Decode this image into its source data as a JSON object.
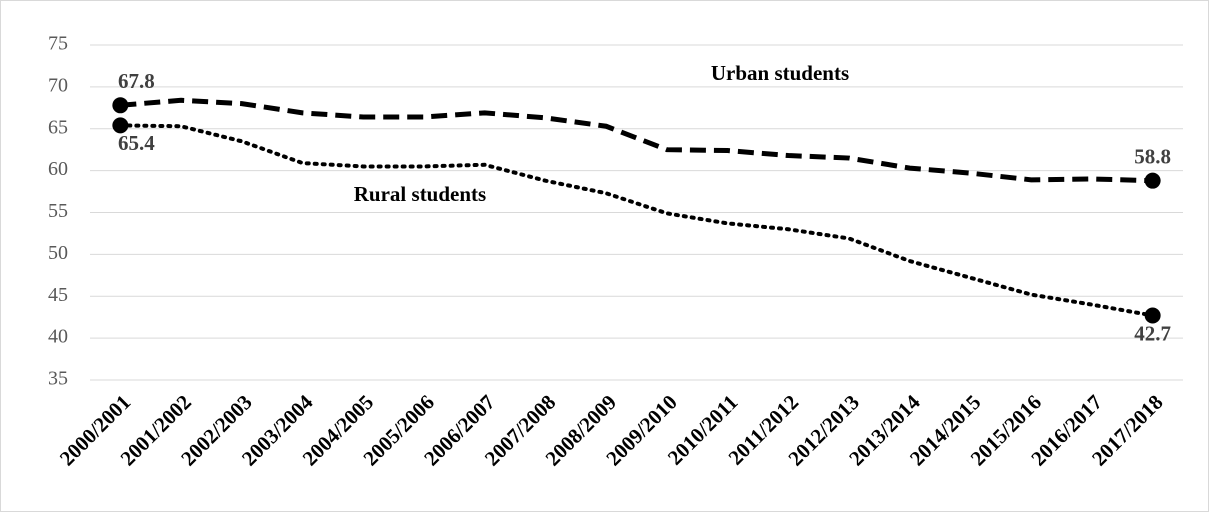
{
  "chart_data": {
    "type": "line",
    "categories": [
      "2000/2001",
      "2001/2002",
      "2002/2003",
      "2003/2004",
      "2004/2005",
      "2005/2006",
      "2006/2007",
      "2007/2008",
      "2008/2009",
      "2009/2010",
      "2010/2011",
      "2011/2012",
      "2012/2013",
      "2013/2014",
      "2014/2015",
      "2015/2016",
      "2016/2017",
      "2017/2018"
    ],
    "series": [
      {
        "name": "Urban students",
        "color": "#000000",
        "dash": "dashed",
        "values": [
          67.8,
          68.4,
          68.0,
          66.9,
          66.4,
          66.4,
          66.9,
          66.3,
          65.3,
          62.5,
          62.4,
          61.8,
          61.5,
          60.3,
          59.7,
          58.9,
          59.0,
          58.8
        ]
      },
      {
        "name": "Rural students",
        "color": "#000000",
        "dash": "dotted",
        "values": [
          65.4,
          65.3,
          63.5,
          60.9,
          60.5,
          60.5,
          60.7,
          58.8,
          57.3,
          54.9,
          53.7,
          53.0,
          51.9,
          49.2,
          47.2,
          45.2,
          44.0,
          42.7
        ]
      }
    ],
    "data_labels": "ends",
    "ylim": [
      35,
      75
    ],
    "yticks": [
      35,
      40,
      45,
      50,
      55,
      60,
      65,
      70,
      75
    ],
    "grid": true
  }
}
